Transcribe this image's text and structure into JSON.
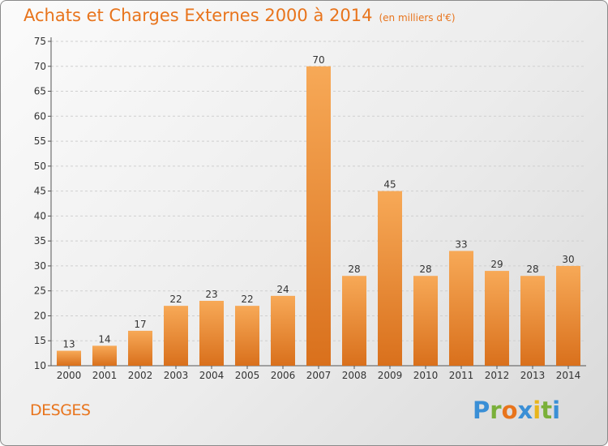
{
  "title": "Achats et Charges Externes 2000 à 2014",
  "subtitle": "(en milliers d'€)",
  "place": "DESGES",
  "logo": {
    "letters": [
      {
        "ch": "P",
        "color": "#3a8fd6"
      },
      {
        "ch": "r",
        "color": "#7ab03a"
      },
      {
        "ch": "o",
        "color": "#e8741c"
      },
      {
        "ch": "x",
        "color": "#3a8fd6"
      },
      {
        "ch": "i",
        "color": "#e8b51c"
      },
      {
        "ch": "t",
        "color": "#7ab03a"
      },
      {
        "ch": "i",
        "color": "#3a8fd6"
      }
    ]
  },
  "chart_data": {
    "type": "bar",
    "title": "Achats et Charges Externes 2000 à 2014",
    "subtitle": "(en milliers d'€)",
    "xlabel": "",
    "ylabel": "",
    "categories": [
      "2000",
      "2001",
      "2002",
      "2003",
      "2004",
      "2005",
      "2006",
      "2007",
      "2008",
      "2009",
      "2010",
      "2011",
      "2012",
      "2013",
      "2014"
    ],
    "values": [
      13,
      14,
      17,
      22,
      23,
      22,
      24,
      70,
      28,
      45,
      28,
      33,
      29,
      28,
      30
    ],
    "ylim": [
      10,
      75
    ],
    "yticks": [
      10,
      15,
      20,
      25,
      30,
      35,
      40,
      45,
      50,
      55,
      60,
      65,
      70,
      75
    ],
    "grid": true,
    "bar_color": "#f0963c",
    "data_labels": true
  }
}
